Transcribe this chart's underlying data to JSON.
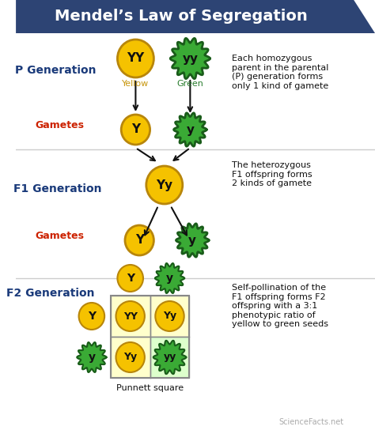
{
  "title": "Mendel’s Law of Segregation",
  "title_bg": "#2d4474",
  "title_color": "#ffffff",
  "yellow_color": "#f5c200",
  "yellow_edge": "#b8860b",
  "yellow_dark": "#c8960c",
  "green_color": "#3aaa35",
  "green_edge": "#1a5c1a",
  "green_dark": "#2a7d2e",
  "red_label": "#cc2200",
  "blue_label": "#1a3a7a",
  "black": "#111111",
  "bg_color": "#ffffff",
  "section_line": "#cccccc",
  "punnett_yellow_bg": "#ffffcc",
  "punnett_green_bg": "#ddffcc",
  "p_gen_note": "Each homozygous\nparent in the parental\n(P) generation forms\nonly 1 kind of gamete",
  "f1_gen_note": "The heterozygous\nF1 offspring forms\n2 kinds of gamete",
  "f2_gen_note": "Self-pollination of the\nF1 offspring forms F2\noffspring with a 3:1\nphenotypic ratio of\nyellow to green seeds",
  "punnett_label": "Punnett square",
  "watermark": "ScienceFacts.net"
}
